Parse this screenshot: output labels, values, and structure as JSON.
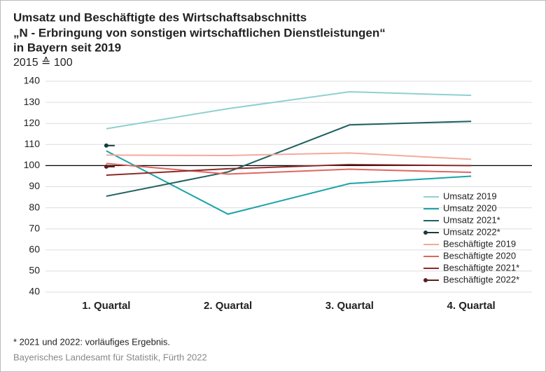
{
  "chart_data": {
    "type": "line",
    "title": [
      "Umsatz und Beschäftigte des Wirtschaftsabschnitts",
      "„N - Erbringung von sonstigen wirtschaftlichen Dienstleistungen“",
      "in Bayern seit 2019"
    ],
    "subtitle": "2015 ≙ 100",
    "categories": [
      "1. Quartal",
      "2. Quartal",
      "3. Quartal",
      "4. Quartal"
    ],
    "series": [
      {
        "name": "Umsatz 2019",
        "color": "#8fd0d0",
        "values": [
          117.5,
          127,
          135,
          133.3
        ]
      },
      {
        "name": "Umsatz 2020",
        "color": "#1aa3a8",
        "values": [
          107,
          77,
          91.5,
          95
        ]
      },
      {
        "name": "Umsatz 2021*",
        "color": "#1f6060",
        "values": [
          85.5,
          97,
          119.3,
          121
        ]
      },
      {
        "name": "Umsatz 2022*",
        "color": "#173d3d",
        "values": [
          109.5,
          null,
          null,
          null
        ],
        "marker": true
      },
      {
        "name": "Beschäftigte 2019",
        "color": "#f4aa9c",
        "values": [
          105,
          104.8,
          106,
          103
        ]
      },
      {
        "name": "Beschäftigte 2020",
        "color": "#e0665f",
        "values": [
          101,
          96,
          98.3,
          96.8
        ]
      },
      {
        "name": "Beschäftigte 2021*",
        "color": "#8c2b2b",
        "values": [
          95.5,
          98.5,
          100.5,
          100
        ]
      },
      {
        "name": "Beschäftigte 2022*",
        "color": "#5a2020",
        "values": [
          99.5,
          null,
          null,
          null
        ],
        "marker": true
      }
    ],
    "ylim": [
      40,
      140
    ],
    "yticks": [
      40,
      50,
      60,
      70,
      80,
      90,
      100,
      110,
      120,
      130,
      140
    ],
    "reference_line": 100,
    "grid": true,
    "legend": "lower right",
    "footnote": "*  2021 und 2022: vorläufiges Ergebnis.",
    "source": "Bayerisches Landesamt für Statistik, Fürth 2022"
  }
}
